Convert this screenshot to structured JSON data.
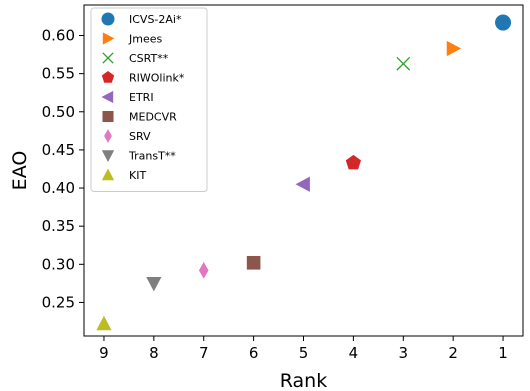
{
  "chart_data": {
    "type": "scatter",
    "xlabel": "Rank",
    "ylabel": "EAO",
    "x_ticks": [
      9,
      8,
      7,
      6,
      5,
      4,
      3,
      2,
      1
    ],
    "x_tick_labels": [
      "9",
      "8",
      "7",
      "6",
      "5",
      "4",
      "3",
      "2",
      "1"
    ],
    "x_inverted": true,
    "xlim": [
      9.4,
      0.6
    ],
    "y_ticks": [
      0.25,
      0.3,
      0.35,
      0.4,
      0.45,
      0.5,
      0.55,
      0.6
    ],
    "y_tick_labels": [
      "0.25",
      "0.30",
      "0.35",
      "0.40",
      "0.45",
      "0.50",
      "0.55",
      "0.60"
    ],
    "ylim": [
      0.206,
      0.64
    ],
    "grid": false,
    "legend_position": "top-left",
    "series": [
      {
        "name": "ICVS-2Ai*",
        "x": 1,
        "y": 0.617,
        "marker": "circle",
        "color": "#1f77b4"
      },
      {
        "name": "Jmees",
        "x": 2,
        "y": 0.583,
        "marker": "triangle-right",
        "color": "#ff7f0e"
      },
      {
        "name": "CSRT**",
        "x": 3,
        "y": 0.563,
        "marker": "x",
        "color": "#2ca02c"
      },
      {
        "name": "RIWOlink*",
        "x": 4,
        "y": 0.433,
        "marker": "pentagon",
        "color": "#d62728"
      },
      {
        "name": "ETRI",
        "x": 5,
        "y": 0.405,
        "marker": "triangle-left",
        "color": "#9467bd"
      },
      {
        "name": "MEDCVR",
        "x": 6,
        "y": 0.302,
        "marker": "square",
        "color": "#8c564b"
      },
      {
        "name": "SRV",
        "x": 7,
        "y": 0.292,
        "marker": "diamond",
        "color": "#e377c2"
      },
      {
        "name": "TransT**",
        "x": 8,
        "y": 0.275,
        "marker": "triangle-down",
        "color": "#7f7f7f"
      },
      {
        "name": "KIT",
        "x": 9,
        "y": 0.222,
        "marker": "triangle-up",
        "color": "#bcbd22"
      }
    ]
  }
}
